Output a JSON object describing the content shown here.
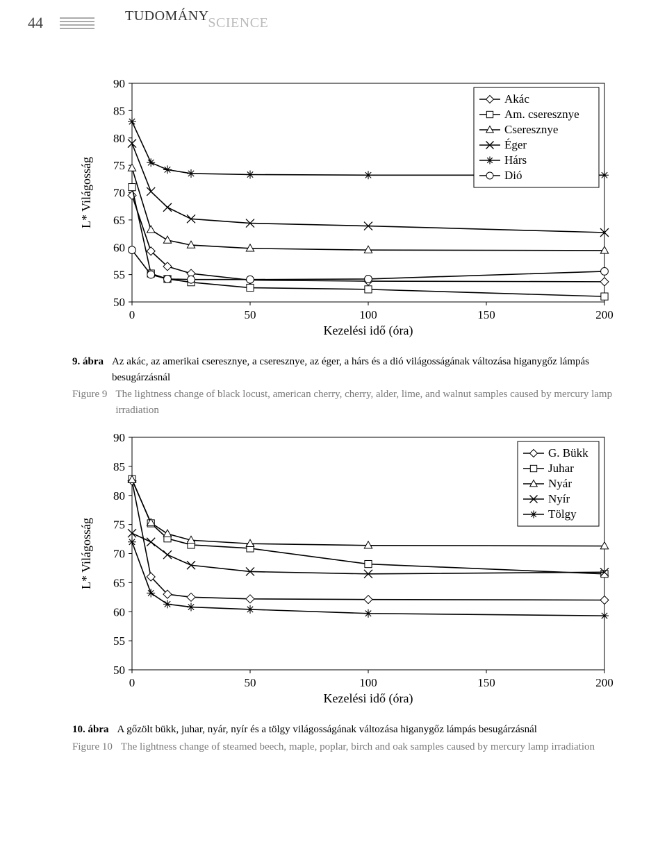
{
  "page_number": "44",
  "header_title_hu": "TUDOMÁNY",
  "header_title_en": "SCIENCE",
  "chart1": {
    "type": "line",
    "xlabel": "Kezelési idő (óra)",
    "ylabel": "L* Világosság",
    "xlim": [
      0,
      200
    ],
    "ylim": [
      50,
      90
    ],
    "xticks": [
      0,
      50,
      100,
      150,
      200
    ],
    "yticks": [
      50,
      55,
      60,
      65,
      70,
      75,
      80,
      85,
      90
    ],
    "axis_fontsize": 18,
    "tick_fontsize": 17,
    "legend_fontsize": 17,
    "line_color": "#000000",
    "marker_fill": "#ffffff",
    "line_width": 1.6,
    "border_color": "#000000",
    "series": [
      {
        "name": "Akác",
        "marker": "diamond",
        "x": [
          0,
          8,
          15,
          25,
          50,
          100,
          200
        ],
        "y": [
          69.5,
          59.3,
          56.5,
          55.2,
          54.0,
          53.8,
          53.7
        ]
      },
      {
        "name": "Am. cseresznye",
        "marker": "square",
        "x": [
          0,
          8,
          15,
          25,
          50,
          100,
          200
        ],
        "y": [
          71.0,
          55.2,
          54.2,
          53.6,
          52.6,
          52.3,
          51.0
        ]
      },
      {
        "name": "Cseresznye",
        "marker": "triangle",
        "x": [
          0,
          8,
          15,
          25,
          50,
          100,
          200
        ],
        "y": [
          74.5,
          63.2,
          61.3,
          60.4,
          59.8,
          59.5,
          59.4
        ]
      },
      {
        "name": "Éger",
        "marker": "x",
        "x": [
          0,
          8,
          15,
          25,
          50,
          100,
          200
        ],
        "y": [
          79.0,
          70.2,
          67.3,
          65.2,
          64.4,
          63.9,
          62.7
        ]
      },
      {
        "name": "Hárs",
        "marker": "asterisk",
        "x": [
          0,
          8,
          15,
          25,
          50,
          100,
          200
        ],
        "y": [
          83.0,
          75.5,
          74.2,
          73.5,
          73.3,
          73.2,
          73.2
        ]
      },
      {
        "name": "Dió",
        "marker": "circle",
        "x": [
          0,
          8,
          15,
          25,
          50,
          100,
          200
        ],
        "y": [
          59.5,
          55.0,
          54.2,
          54.1,
          54.1,
          54.2,
          55.6
        ]
      }
    ]
  },
  "caption1": {
    "label_hu": "9. ábra",
    "text_hu": "Az akác, az amerikai cseresznye, a cseresznye, az éger, a hárs és a dió világosságának változása higanygőz lámpás besugárzásnál",
    "label_en": "Figure 9",
    "text_en": "The lightness change of black locust, american cherry, cherry, alder, lime, and walnut samples caused by mercury lamp irradiation"
  },
  "chart2": {
    "type": "line",
    "xlabel": "Kezelési idő (óra)",
    "ylabel": "L* Világosság",
    "xlim": [
      0,
      200
    ],
    "ylim": [
      50,
      90
    ],
    "xticks": [
      0,
      50,
      100,
      150,
      200
    ],
    "yticks": [
      50,
      55,
      60,
      65,
      70,
      75,
      80,
      85,
      90
    ],
    "axis_fontsize": 18,
    "tick_fontsize": 17,
    "legend_fontsize": 17,
    "line_color": "#000000",
    "marker_fill": "#ffffff",
    "line_width": 1.6,
    "border_color": "#000000",
    "series": [
      {
        "name": "G. Bükk",
        "marker": "diamond",
        "x": [
          0,
          8,
          15,
          25,
          50,
          100,
          200
        ],
        "y": [
          82.5,
          66.0,
          63.0,
          62.5,
          62.2,
          62.1,
          62.0
        ]
      },
      {
        "name": "Juhar",
        "marker": "square",
        "x": [
          0,
          8,
          15,
          25,
          50,
          100,
          200
        ],
        "y": [
          82.8,
          75.2,
          72.6,
          71.5,
          70.9,
          68.2,
          66.5
        ]
      },
      {
        "name": "Nyár",
        "marker": "triangle",
        "x": [
          0,
          8,
          15,
          25,
          50,
          100,
          200
        ],
        "y": [
          82.7,
          75.3,
          73.4,
          72.3,
          71.7,
          71.4,
          71.3
        ]
      },
      {
        "name": "Nyír",
        "marker": "x",
        "x": [
          0,
          8,
          15,
          25,
          50,
          100,
          200
        ],
        "y": [
          73.5,
          72.0,
          69.8,
          68.0,
          66.9,
          66.5,
          66.8
        ]
      },
      {
        "name": "Tölgy",
        "marker": "asterisk",
        "x": [
          0,
          8,
          15,
          25,
          50,
          100,
          200
        ],
        "y": [
          72.0,
          63.2,
          61.3,
          60.8,
          60.4,
          59.7,
          59.3
        ]
      }
    ]
  },
  "caption2": {
    "label_hu": "10. ábra",
    "text_hu": "A gőzölt bükk, juhar, nyár, nyír és a tölgy világosságának változása higanygőz lámpás besugárzásnál",
    "label_en": "Figure 10",
    "text_en": "The lightness change of steamed beech, maple, poplar, birch and oak samples caused by mercury lamp irradiation"
  }
}
